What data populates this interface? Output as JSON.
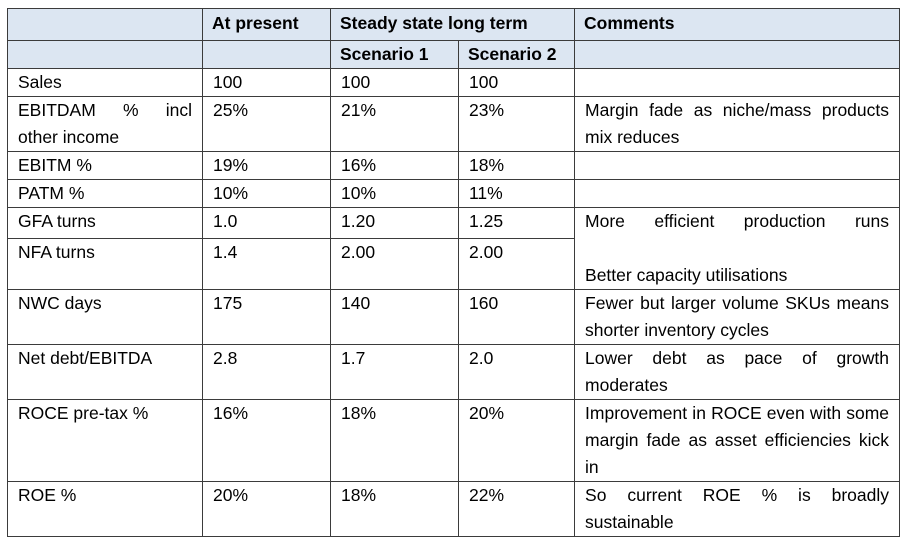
{
  "header": {
    "at_present": "At present",
    "steady_state": "Steady state long term",
    "comments": "Comments",
    "scenario_1": "Scenario 1",
    "scenario_2": "Scenario 2"
  },
  "rows": [
    {
      "metric": "Sales",
      "present": "100",
      "s1": "100",
      "s2": "100",
      "comment": ""
    },
    {
      "metric": "EBITDAM % incl other income",
      "present": "25%",
      "s1": "21%",
      "s2": "23%",
      "comment": "Margin fade as niche/mass products mix reduces"
    },
    {
      "metric": "EBITM %",
      "present": "19%",
      "s1": "16%",
      "s2": "18%",
      "comment": ""
    },
    {
      "metric": "PATM %",
      "present": "10%",
      "s1": "10%",
      "s2": "11%",
      "comment": ""
    },
    {
      "metric": "GFA turns",
      "present": "1.0",
      "s1": "1.20",
      "s2": "1.25",
      "comment": "More efficient production runs"
    },
    {
      "metric": "NFA turns",
      "present": "1.4",
      "s1": "2.00",
      "s2": "2.00",
      "comment": "Better capacity utilisations"
    },
    {
      "metric": "NWC days",
      "present": "175",
      "s1": "140",
      "s2": "160",
      "comment": "Fewer but larger volume SKUs means shorter inventory cycles"
    },
    {
      "metric": "Net debt/EBITDA",
      "present": "2.8",
      "s1": "1.7",
      "s2": "2.0",
      "comment": "Lower debt as pace of growth moderates"
    },
    {
      "metric": "ROCE pre-tax %",
      "present": "16%",
      "s1": "18%",
      "s2": "20%",
      "comment": " Improvement in ROCE even with some margin fade as asset efficiencies kick in"
    },
    {
      "metric": "ROE %",
      "present": "20%",
      "s1": "18%",
      "s2": "22%",
      "comment": " So current ROE % is broadly sustainable"
    }
  ]
}
